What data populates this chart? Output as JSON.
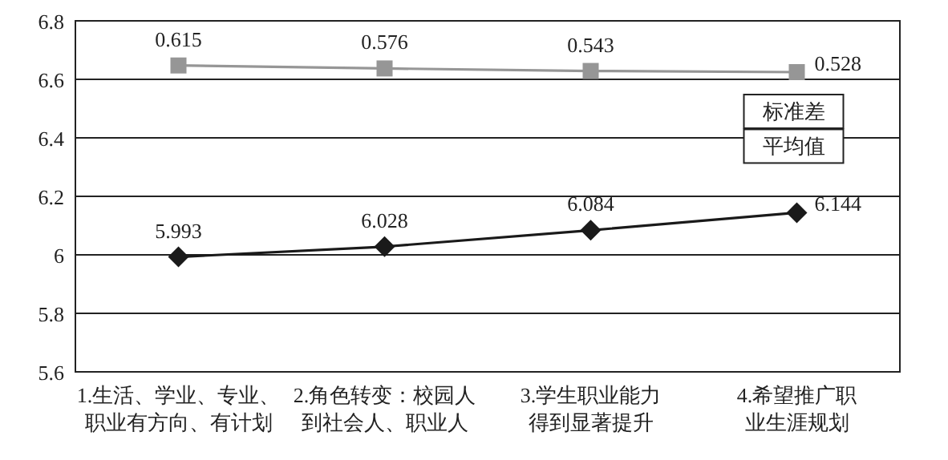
{
  "chart_data": {
    "type": "line",
    "categories": [
      "1.生活、学业、专业、职业有方向、有计划",
      "2.角色转变：校园人到社会人、职业人",
      "3.学生职业能力得到显著提升",
      "4.希望推广职业生涯规划"
    ],
    "series": [
      {
        "name": "标准差",
        "color": "#969696",
        "marker": "square",
        "axis": "y2",
        "values": [
          0.615,
          0.576,
          0.543,
          0.528
        ]
      },
      {
        "name": "平均值",
        "color": "#1a1a1a",
        "marker": "diamond",
        "values": [
          5.993,
          6.028,
          6.084,
          6.144
        ]
      }
    ],
    "ylim": [
      5.6,
      6.8
    ],
    "yticks": [
      5.6,
      5.8,
      6,
      6.2,
      6.4,
      6.6,
      6.8
    ],
    "y2lim": [
      -3.4,
      1.2
    ],
    "tick_labels": "xy",
    "data_labels": true,
    "grid": "y"
  }
}
